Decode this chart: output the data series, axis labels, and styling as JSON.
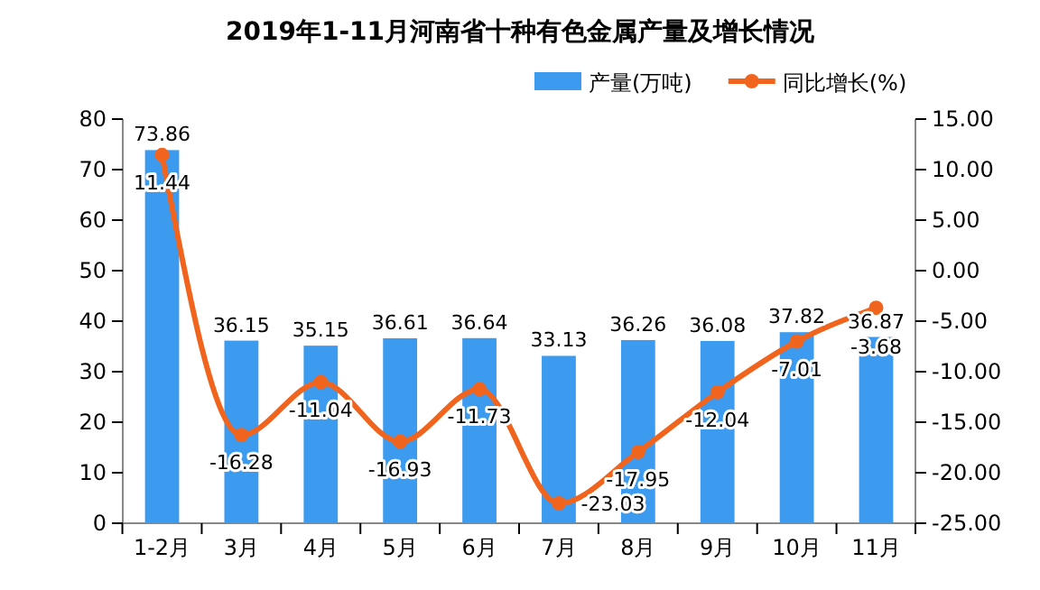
{
  "chart_data": {
    "type": "bar",
    "title": "2019年1-11月河南省十种有色金属产量及增长情况",
    "categories": [
      "1-2月",
      "3月",
      "4月",
      "5月",
      "6月",
      "7月",
      "8月",
      "9月",
      "10月",
      "11月"
    ],
    "series": [
      {
        "name": "产量(万吨)",
        "type": "bar",
        "color": "#3d9bef",
        "values": [
          73.86,
          36.15,
          35.15,
          36.61,
          36.64,
          33.13,
          36.26,
          36.08,
          37.82,
          36.87
        ]
      },
      {
        "name": "同比增长(%)",
        "type": "line",
        "axis": "y2",
        "color": "#f0641e",
        "marker": "circle",
        "values": [
          11.44,
          -16.28,
          -11.04,
          -16.93,
          -11.73,
          -23.03,
          -17.95,
          -12.04,
          -7.01,
          -3.68
        ]
      }
    ],
    "ylim": [
      0,
      80
    ],
    "yticks": [
      0,
      10,
      20,
      30,
      40,
      50,
      60,
      70,
      80
    ],
    "y2lim": [
      -25,
      15
    ],
    "y2ticks": [
      {
        "value": -25,
        "label": "-25.00"
      },
      {
        "value": -20,
        "label": "-20.00"
      },
      {
        "value": -15,
        "label": "-15.00"
      },
      {
        "value": -10,
        "label": "-10.00"
      },
      {
        "value": -5,
        "label": "-5.00"
      },
      {
        "value": 0,
        "label": "0.00"
      },
      {
        "value": 5,
        "label": "5.00"
      },
      {
        "value": 10,
        "label": "10.00"
      },
      {
        "value": 15,
        "label": "15.00"
      }
    ],
    "data_labels": true,
    "legend": "top right",
    "grid": false
  }
}
